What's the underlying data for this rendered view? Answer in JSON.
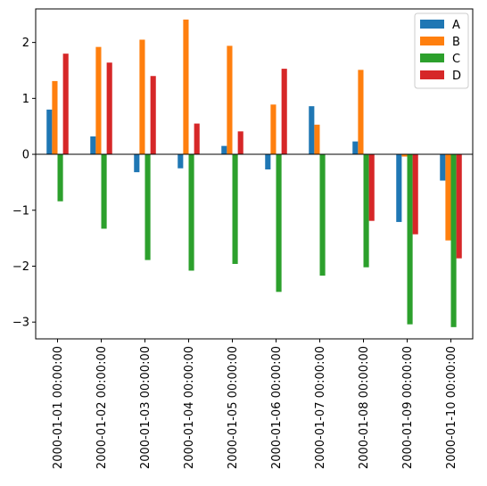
{
  "chart_data": {
    "type": "bar",
    "categories": [
      "2000-01-01 00:00:00",
      "2000-01-02 00:00:00",
      "2000-01-03 00:00:00",
      "2000-01-04 00:00:00",
      "2000-01-05 00:00:00",
      "2000-01-06 00:00:00",
      "2000-01-07 00:00:00",
      "2000-01-08 00:00:00",
      "2000-01-09 00:00:00",
      "2000-01-10 00:00:00"
    ],
    "series": [
      {
        "name": "A",
        "color": "#1f77b4",
        "values": [
          0.8,
          0.32,
          -0.32,
          -0.25,
          0.15,
          -0.27,
          0.86,
          0.23,
          -1.21,
          -0.47
        ]
      },
      {
        "name": "B",
        "color": "#ff7f0e",
        "values": [
          1.31,
          1.92,
          2.05,
          2.41,
          1.94,
          0.89,
          0.53,
          1.51,
          -0.04,
          -1.54
        ]
      },
      {
        "name": "C",
        "color": "#2ca02c",
        "values": [
          -0.84,
          -1.33,
          -1.89,
          -2.08,
          -1.96,
          -2.46,
          -2.17,
          -2.02,
          -3.04,
          -3.09
        ]
      },
      {
        "name": "D",
        "color": "#d62728",
        "values": [
          1.8,
          1.64,
          1.4,
          0.55,
          0.41,
          1.53,
          0.0,
          -1.19,
          -1.43,
          -1.86
        ]
      }
    ],
    "title": "",
    "xlabel": "",
    "ylabel": "",
    "ylim": [
      -3.3,
      2.6
    ],
    "yticks": [
      2,
      1,
      0,
      -1,
      -2,
      -3
    ],
    "ytick_labels": [
      "2",
      "1",
      "0",
      "−1",
      "−2",
      "−3"
    ],
    "grid": false,
    "legend_position": "upper right",
    "zero_line": true
  }
}
